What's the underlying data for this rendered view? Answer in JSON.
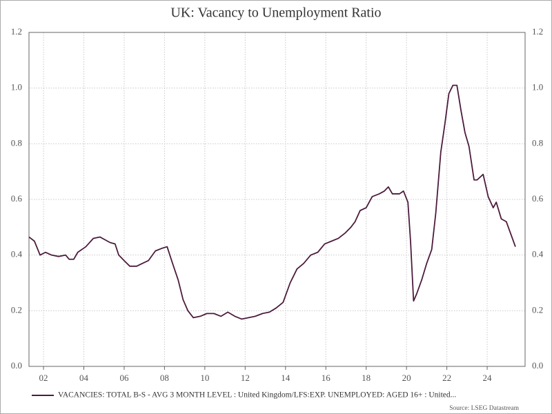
{
  "chart_data": {
    "type": "line",
    "title": "UK: Vacancy to Unemployment Ratio",
    "source": "Source: LSEG Datastream",
    "grid": true,
    "legend_position": "bottom",
    "xlim": [
      2001.28,
      2025.88
    ],
    "xticks": [
      {
        "value": 2002,
        "label": "02"
      },
      {
        "value": 2004,
        "label": "04"
      },
      {
        "value": 2006,
        "label": "06"
      },
      {
        "value": 2008,
        "label": "08"
      },
      {
        "value": 2010,
        "label": "10"
      },
      {
        "value": 2012,
        "label": "12"
      },
      {
        "value": 2014,
        "label": "14"
      },
      {
        "value": 2016,
        "label": "16"
      },
      {
        "value": 2018,
        "label": "18"
      },
      {
        "value": 2020,
        "label": "20"
      },
      {
        "value": 2022,
        "label": "22"
      },
      {
        "value": 2024,
        "label": "24"
      }
    ],
    "ylim": [
      0,
      1.2
    ],
    "yticks": [
      {
        "value": 0,
        "label": "0.0"
      },
      0.2,
      0.4,
      0.6,
      0.8,
      {
        "value": 1,
        "label": "1.0"
      },
      1.2
    ],
    "x": [
      2001.28,
      2001.55,
      2001.83,
      2002.1,
      2002.4,
      2002.75,
      2003.1,
      2003.27,
      2003.5,
      2003.7,
      2004.1,
      2004.47,
      2004.8,
      2005.05,
      2005.3,
      2005.55,
      2005.73,
      2006.0,
      2006.28,
      2006.62,
      2006.9,
      2007.2,
      2007.55,
      2007.9,
      2008.13,
      2008.4,
      2008.68,
      2008.92,
      2009.16,
      2009.43,
      2009.77,
      2010.1,
      2010.45,
      2010.8,
      2011.14,
      2011.49,
      2011.83,
      2012.17,
      2012.5,
      2012.86,
      2013.2,
      2013.54,
      2013.88,
      2014.23,
      2014.57,
      2014.9,
      2015.25,
      2015.6,
      2015.94,
      2016.28,
      2016.62,
      2016.97,
      2017.24,
      2017.45,
      2017.7,
      2018.0,
      2018.3,
      2018.65,
      2018.9,
      2019.1,
      2019.3,
      2019.65,
      2019.85,
      2020.07,
      2020.2,
      2020.35,
      2020.5,
      2020.75,
      2021.0,
      2021.25,
      2021.45,
      2021.7,
      2021.9,
      2022.1,
      2022.3,
      2022.5,
      2022.7,
      2022.9,
      2023.1,
      2023.35,
      2023.5,
      2023.8,
      2024.05,
      2024.3,
      2024.45,
      2024.7,
      2024.95,
      2025.2,
      2025.4
    ],
    "series": [
      {
        "name": "VACANCIES: TOTAL B-S - AVG 3 MONTH LEVEL : United Kingdom/LFS:EXP. UNEMPLOYED: AGED 16+ : United...",
        "color": "#4b1b3c",
        "values": [
          0.465,
          0.45,
          0.4,
          0.41,
          0.4,
          0.395,
          0.4,
          0.385,
          0.385,
          0.41,
          0.43,
          0.46,
          0.465,
          0.455,
          0.445,
          0.44,
          0.4,
          0.38,
          0.36,
          0.36,
          0.37,
          0.38,
          0.415,
          0.425,
          0.43,
          0.37,
          0.31,
          0.24,
          0.2,
          0.175,
          0.18,
          0.19,
          0.19,
          0.18,
          0.195,
          0.18,
          0.17,
          0.175,
          0.18,
          0.19,
          0.195,
          0.21,
          0.23,
          0.3,
          0.35,
          0.37,
          0.4,
          0.41,
          0.44,
          0.45,
          0.46,
          0.48,
          0.5,
          0.52,
          0.56,
          0.57,
          0.61,
          0.62,
          0.63,
          0.645,
          0.62,
          0.62,
          0.63,
          0.59,
          0.45,
          0.235,
          0.26,
          0.31,
          0.37,
          0.42,
          0.55,
          0.77,
          0.87,
          0.98,
          1.01,
          1.01,
          0.92,
          0.84,
          0.79,
          0.67,
          0.67,
          0.69,
          0.61,
          0.57,
          0.59,
          0.53,
          0.52,
          0.47,
          0.43
        ]
      }
    ]
  }
}
